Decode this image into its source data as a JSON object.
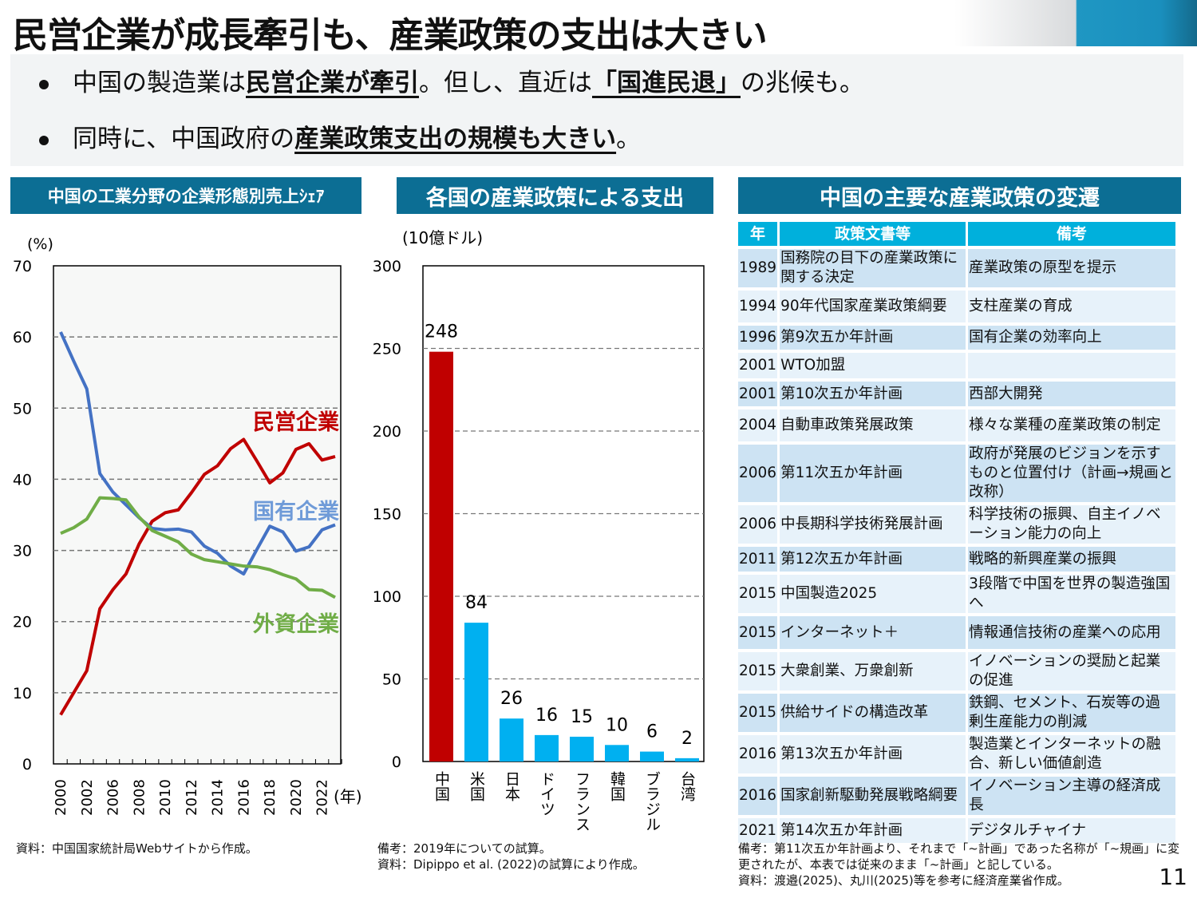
{
  "title": "民営企業が成長牽引も、産業政策の支出は大きい",
  "bullets": [
    {
      "pre": "中国の製造業は",
      "bold1": "民営企業が牽引",
      "mid": "。但し、直近は",
      "bold2": "「国進民退」",
      "post": "の兆候も。"
    },
    {
      "pre": "同時に、中国政府の",
      "bold1": "産業政策支出の規模も大きい",
      "post": "。"
    }
  ],
  "panels": {
    "left_title": "中国の工業分野の企業形態別売上ｼｪｱ",
    "mid_title": "各国の産業政策による支出",
    "right_title": "中国の主要な産業政策の変遷"
  },
  "chart_data": [
    {
      "type": "line",
      "ylabel": "(%)",
      "xlabel": "(年)",
      "ylim": [
        0,
        70
      ],
      "yticks": [
        0,
        10,
        20,
        30,
        40,
        50,
        60,
        70
      ],
      "grid": true,
      "x": [
        2000,
        2001,
        2002,
        2005,
        2006,
        2007,
        2008,
        2009,
        2010,
        2011,
        2012,
        2013,
        2014,
        2015,
        2016,
        2017,
        2018,
        2019,
        2020,
        2021,
        2022,
        2023
      ],
      "xtick_labels": [
        "2000",
        "2002",
        "2006",
        "2008",
        "2010",
        "2012",
        "2014",
        "2016",
        "2018",
        "2020",
        "2022"
      ],
      "series": [
        {
          "name": "民営企業",
          "color": "#c00000",
          "values": [
            6.9,
            10.0,
            13.1,
            21.8,
            24.5,
            26.7,
            30.9,
            34.1,
            35.3,
            35.7,
            38.1,
            40.7,
            41.9,
            44.3,
            45.6,
            42.6,
            39.5,
            40.9,
            44.2,
            45.0,
            42.7,
            43.2
          ]
        },
        {
          "name": "国有企業",
          "color": "#4472c4",
          "label_color": "#6f9bd8",
          "values": [
            60.7,
            56.6,
            52.7,
            40.8,
            38.2,
            36.4,
            34.6,
            33.1,
            32.9,
            33.0,
            32.6,
            30.6,
            29.6,
            27.8,
            26.7,
            30.1,
            33.4,
            32.6,
            29.9,
            30.5,
            32.9,
            33.6
          ]
        },
        {
          "name": "外資企業",
          "color": "#70ad47",
          "values": [
            32.4,
            33.2,
            34.4,
            37.4,
            37.3,
            37.1,
            34.7,
            32.8,
            32.0,
            31.2,
            29.5,
            28.7,
            28.4,
            28.1,
            27.8,
            27.7,
            27.3,
            26.6,
            26.0,
            24.5,
            24.4,
            23.4
          ]
        }
      ],
      "source": "資料：中国国家統計局Webサイトから作成。"
    },
    {
      "type": "bar",
      "ylabel": "(10億ドル)",
      "ylim": [
        0,
        300
      ],
      "yticks": [
        0,
        50,
        100,
        150,
        200,
        250,
        300
      ],
      "grid": true,
      "categories": [
        "中国",
        "米国",
        "日本",
        "ドイツ",
        "フランス",
        "韓国",
        "ブラジル",
        "台湾"
      ],
      "values": [
        248,
        84,
        26,
        16,
        15,
        10,
        6,
        2
      ],
      "colors": [
        "#c00000",
        "#00b0f0",
        "#00b0f0",
        "#00b0f0",
        "#00b0f0",
        "#00b0f0",
        "#00b0f0",
        "#00b0f0"
      ],
      "notes": [
        "備考：2019年についての試算。",
        "資料：Dipippo et al. (2022)の試算により作成。"
      ]
    }
  ],
  "table": {
    "headers": [
      "年",
      "政策文書等",
      "備考"
    ],
    "rows": [
      [
        "1989",
        "国務院の目下の産業政策に関する決定",
        "産業政策の原型を提示"
      ],
      [
        "1994",
        "90年代国家産業政策綱要",
        "支柱産業の育成"
      ],
      [
        "1996",
        "第9次五か年計画",
        "国有企業の効率向上"
      ],
      [
        "2001",
        "WTO加盟",
        ""
      ],
      [
        "2001",
        "第10次五か年計画",
        "西部大開発"
      ],
      [
        "2004",
        "自動車政策発展政策",
        "様々な業種の産業政策の制定"
      ],
      [
        "2006",
        "第11次五か年計画",
        "政府が発展のビジョンを示すものと位置付け（計画→規画と改称）"
      ],
      [
        "2006",
        "中長期科学技術発展計画",
        "科学技術の振興、自主イノベーション能力の向上"
      ],
      [
        "2011",
        "第12次五か年計画",
        "戦略的新興産業の振興"
      ],
      [
        "2015",
        "中国製造2025",
        "3段階で中国を世界の製造強国へ"
      ],
      [
        "2015",
        "インターネット＋",
        "情報通信技術の産業への応用"
      ],
      [
        "2015",
        "大衆創業、万衆創新",
        "イノベーションの奨励と起業の促進"
      ],
      [
        "2015",
        "供給サイドの構造改革",
        "鉄鋼、セメント、石炭等の過剰生産能力の削減"
      ],
      [
        "2016",
        "第13次五か年計画",
        "製造業とインターネットの融合、新しい価値創造"
      ],
      [
        "2016",
        "国家創新駆動発展戦略綱要",
        "イノベーション主導の経済成長"
      ],
      [
        "2021",
        "第14次五か年計画",
        "デジタルチャイナ"
      ]
    ],
    "notes": [
      "備考：第11次五か年計画より、それまで「~計画」であった名称が「~規画」に変更されたが、本表では従来のまま「~計画」と記している。",
      "資料：渡邉(2025)、丸川(2025)等を参考に経済産業省作成。"
    ]
  },
  "page_number": "11"
}
